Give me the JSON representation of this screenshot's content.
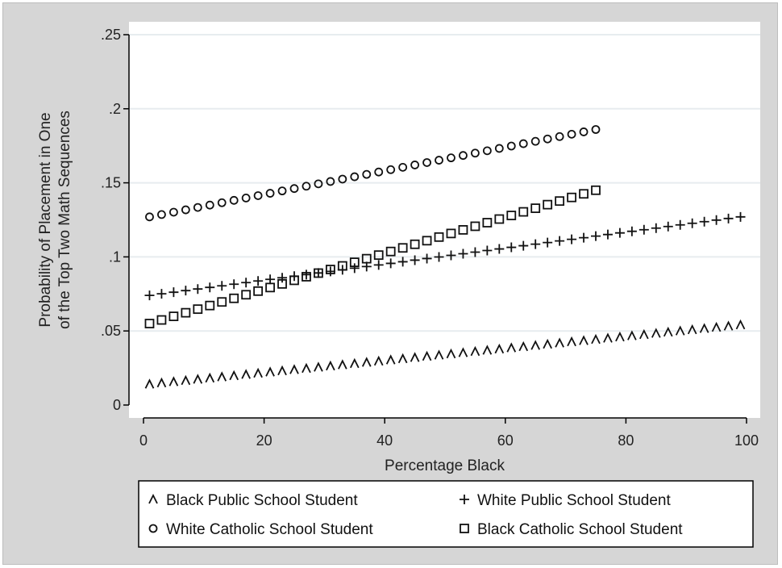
{
  "chart_data": {
    "type": "scatter",
    "xlabel": "Percentage Black",
    "ylabel_lines": [
      "Probability of Placement in One",
      "of the Top Two Math Sequences"
    ],
    "xlim": [
      -2,
      102
    ],
    "ylim": [
      -0.005,
      0.255
    ],
    "x_ticks": [
      0,
      20,
      40,
      60,
      80,
      100
    ],
    "x_tick_labels": [
      "0",
      "20",
      "40",
      "60",
      "80",
      "100"
    ],
    "y_ticks": [
      0,
      0.05,
      0.1,
      0.15,
      0.2,
      0.25
    ],
    "y_tick_labels": [
      "0",
      ".05",
      ".1",
      ".15",
      ".2",
      ".25"
    ],
    "grid": true,
    "legend_position": "bottom",
    "series": [
      {
        "name": "Black Public School Student",
        "marker": "caret",
        "legend_symbol": "^",
        "x_start": 1,
        "x_end": 99,
        "x_step": 2,
        "y_start": 0.014,
        "y_end": 0.054
      },
      {
        "name": "White Public School Student",
        "marker": "plus",
        "legend_symbol": "+",
        "x_start": 1,
        "x_end": 99,
        "x_step": 2,
        "y_start": 0.074,
        "y_end": 0.127
      },
      {
        "name": "White Catholic School Student",
        "marker": "circle",
        "legend_symbol": "o",
        "x_start": 1,
        "x_end": 75,
        "x_step": 2,
        "y_start": 0.127,
        "y_end": 0.186
      },
      {
        "name": "Black Catholic School Student",
        "marker": "square",
        "legend_symbol": "□",
        "x_start": 1,
        "x_end": 75,
        "x_step": 2,
        "y_start": 0.055,
        "y_end": 0.145
      }
    ]
  }
}
